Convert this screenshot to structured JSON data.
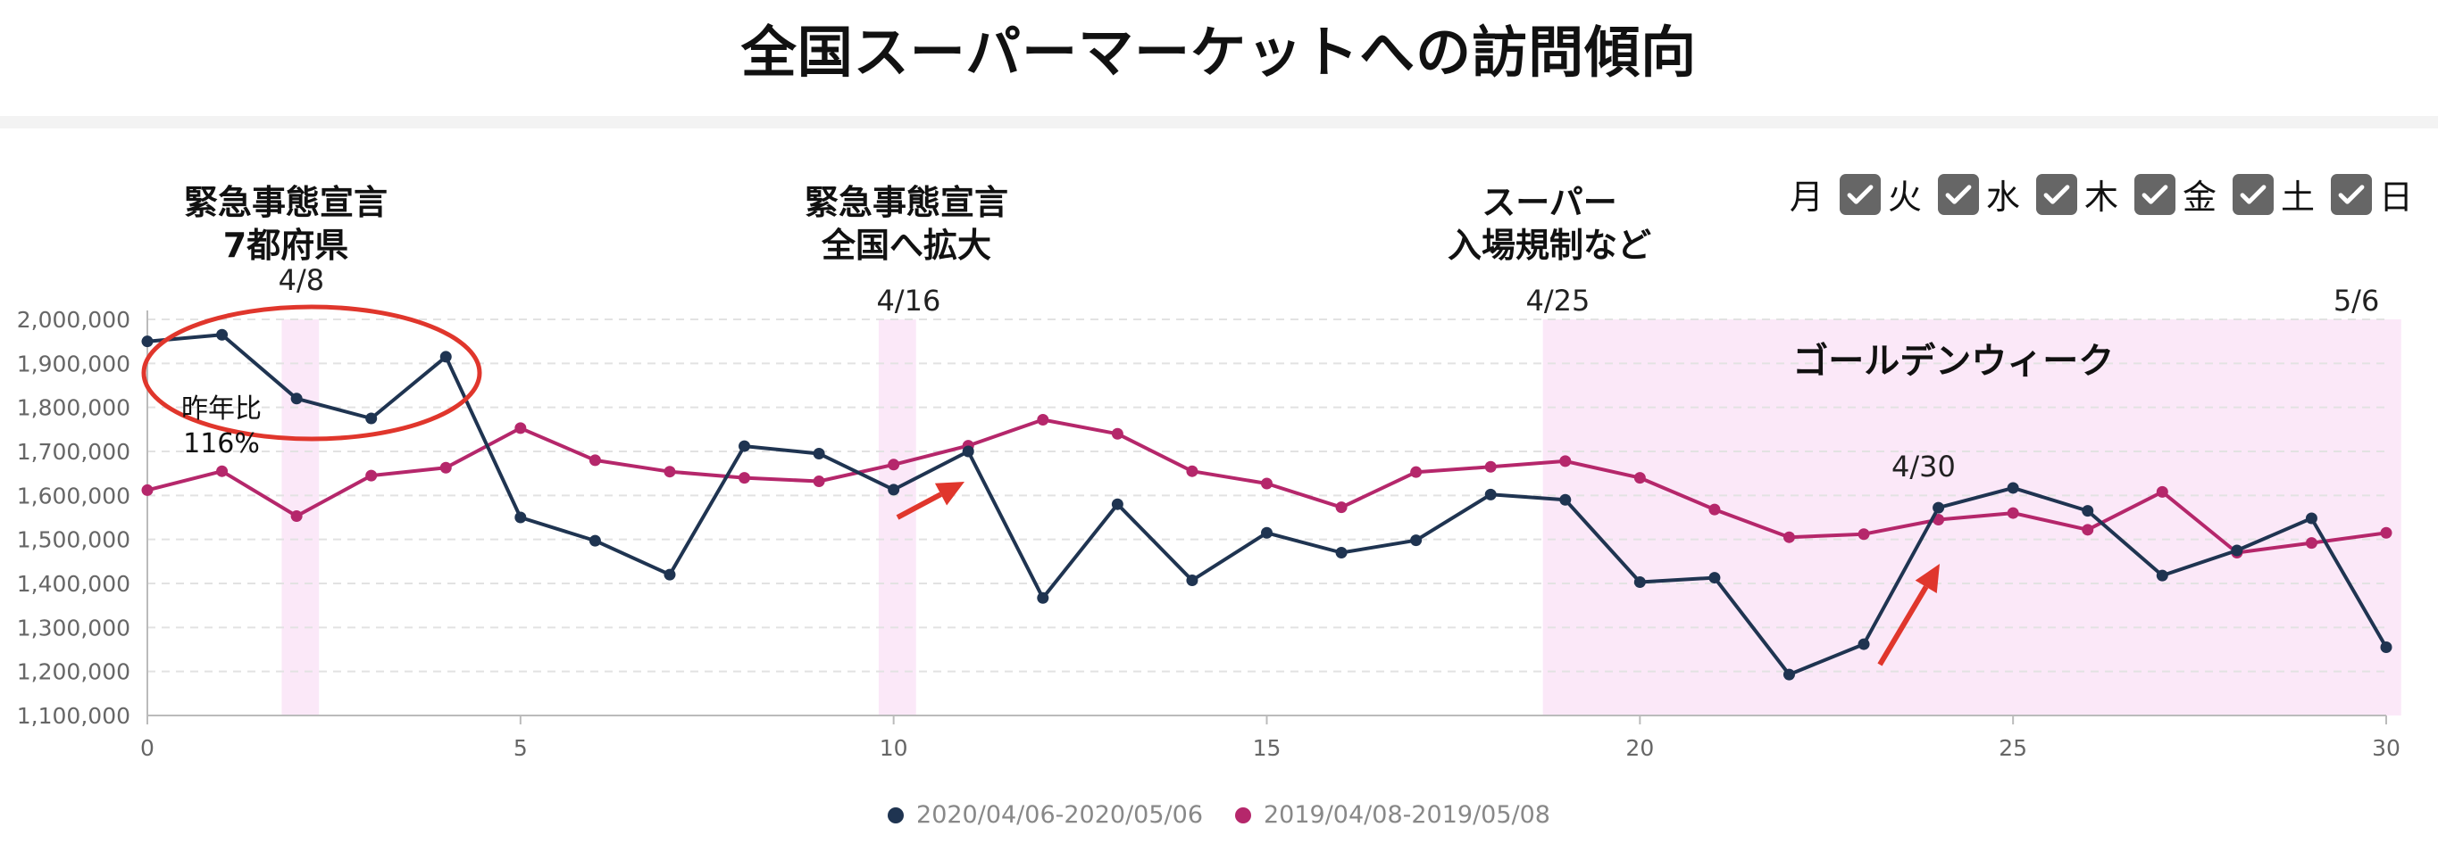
{
  "title": "全国スーパーマーケットへの訪問傾向",
  "events": [
    {
      "lines": [
        "緊急事態宣言",
        "7都府県"
      ],
      "date": "4/8"
    },
    {
      "lines": [
        "緊急事態宣言",
        "全国へ拡大"
      ],
      "date": "4/16"
    },
    {
      "lines": [
        "スーパー",
        "入場規制など"
      ],
      "date": "4/25"
    }
  ],
  "end_date": "5/6",
  "golden_week": "ゴールデンウィーク",
  "gw_date": "4/30",
  "yoy": {
    "label": "昨年比",
    "value": "116%"
  },
  "days": [
    {
      "label": "月",
      "checked": false
    },
    {
      "label": "火",
      "checked": true
    },
    {
      "label": "水",
      "checked": true
    },
    {
      "label": "木",
      "checked": true
    },
    {
      "label": "金",
      "checked": true
    },
    {
      "label": "土",
      "checked": true
    },
    {
      "label": "日",
      "checked": true
    }
  ],
  "colors": {
    "series_2020": "#1f3451",
    "series_2019": "#b5276b",
    "highlight": "#fbe8f8",
    "annotation": "#e0362c"
  },
  "chart_data": {
    "type": "line",
    "x": [
      0,
      1,
      2,
      3,
      4,
      5,
      6,
      7,
      8,
      9,
      10,
      11,
      12,
      13,
      14,
      15,
      16,
      17,
      18,
      19,
      20,
      21,
      22,
      23,
      24,
      25,
      26,
      27,
      28,
      29,
      30
    ],
    "series": [
      {
        "name": "2020/04/06-2020/05/06",
        "values": [
          1950000,
          1965000,
          1820000,
          1775000,
          1915000,
          1550000,
          1497000,
          1420000,
          1712000,
          1695000,
          1613000,
          1700000,
          1367000,
          1580000,
          1407000,
          1515000,
          1470000,
          1498000,
          1602000,
          1590000,
          1403000,
          1413000,
          1193000,
          1262000,
          1572000,
          1617000,
          1565000,
          1418000,
          1475000,
          1548000,
          1255000
        ]
      },
      {
        "name": "2019/04/08-2019/05/08",
        "values": [
          1612000,
          1655000,
          1553000,
          1645000,
          1663000,
          1753000,
          1680000,
          1654000,
          1640000,
          1632000,
          1670000,
          1713000,
          1772000,
          1740000,
          1655000,
          1627000,
          1573000,
          1653000,
          1665000,
          1678000,
          1640000,
          1568000,
          1505000,
          1512000,
          1545000,
          1560000,
          1522000,
          1608000,
          1470000,
          1492000,
          1515000
        ]
      }
    ],
    "ylim": [
      1100000,
      2000000
    ],
    "yticks": [
      1100000,
      1200000,
      1300000,
      1400000,
      1500000,
      1600000,
      1700000,
      1800000,
      1900000,
      2000000
    ],
    "xticks": [
      0,
      5,
      10,
      15,
      20,
      25,
      30
    ],
    "highlights": [
      [
        1.8,
        2.3
      ],
      [
        9.8,
        10.3
      ],
      [
        18.7,
        30.2
      ]
    ],
    "grid": "horizontal dashed",
    "legend": "bottom-center"
  }
}
